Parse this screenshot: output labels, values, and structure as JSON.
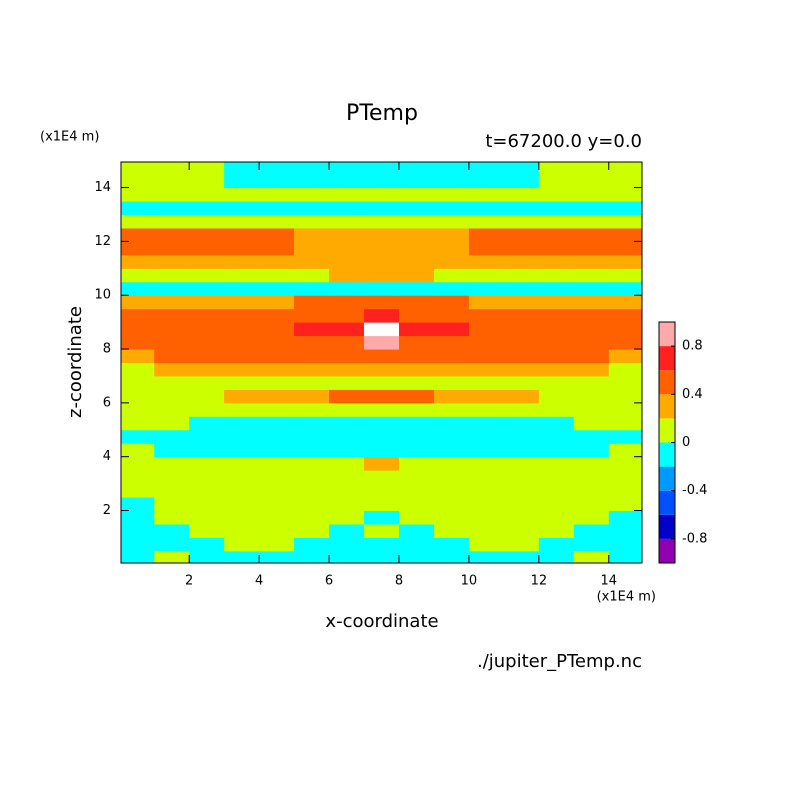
{
  "chart_data": {
    "type": "contour",
    "title": "PTemp",
    "subtitle": "t=67200.0 y=0.0",
    "xlabel": "x-coordinate",
    "ylabel": "z-coordinate",
    "x_unit": "(x1E4 m)",
    "y_unit": "(x1E4 m)",
    "source": "./jupiter_PTemp.nc",
    "xlim": [
      0.05,
      14.95
    ],
    "ylim": [
      0.05,
      14.95
    ],
    "xticks": [
      2,
      4,
      6,
      8,
      10,
      12,
      14
    ],
    "yticks": [
      2,
      4,
      6,
      8,
      10,
      12,
      14
    ],
    "x": [
      0.5,
      1.5,
      2.5,
      3.5,
      4.5,
      5.5,
      6.5,
      7.5,
      8.5,
      9.5,
      10.5,
      11.5,
      12.5,
      13.5,
      14.5
    ],
    "y": [
      0.25,
      0.75,
      1.25,
      1.75,
      2.25,
      2.75,
      3.25,
      3.75,
      4.25,
      4.75,
      5.25,
      5.75,
      6.25,
      6.75,
      7.25,
      7.75,
      8.25,
      8.75,
      9.25,
      9.75,
      10.25,
      10.75,
      11.25,
      11.75,
      12.25,
      12.75,
      13.25,
      13.75,
      14.25,
      14.75
    ],
    "z": [
      [
        -0.1,
        0.05,
        -0.1,
        -0.1,
        -0.1,
        -0.1,
        -0.1,
        -0.1,
        -0.1,
        -0.1,
        -0.1,
        -0.1,
        -0.1,
        0.05,
        -0.1
      ],
      [
        -0.1,
        -0.1,
        -0.05,
        0.1,
        0.1,
        -0.05,
        -0.1,
        -0.1,
        -0.1,
        -0.05,
        0.1,
        0.1,
        -0.05,
        -0.1,
        -0.1
      ],
      [
        -0.1,
        -0.1,
        0.1,
        0.1,
        0.1,
        0.1,
        -0.05,
        0.1,
        -0.05,
        0.1,
        0.1,
        0.1,
        0.1,
        -0.1,
        -0.1
      ],
      [
        -0.1,
        0.1,
        0.1,
        0.1,
        0.1,
        0.1,
        0.1,
        -0.05,
        0.1,
        0.1,
        0.1,
        0.1,
        0.1,
        0.1,
        -0.1
      ],
      [
        -0.05,
        0.1,
        0.1,
        0.15,
        0.1,
        0.1,
        0.1,
        0.1,
        0.1,
        0.1,
        0.1,
        0.1,
        0.1,
        0.1,
        0.1
      ],
      [
        0.12,
        0.12,
        0.12,
        0.12,
        0.12,
        0.12,
        0.12,
        0.12,
        0.12,
        0.12,
        0.12,
        0.12,
        0.12,
        0.12,
        0.12
      ],
      [
        0.12,
        0.12,
        0.12,
        0.12,
        0.12,
        0.12,
        0.12,
        0.15,
        0.12,
        0.12,
        0.12,
        0.12,
        0.12,
        0.12,
        0.12
      ],
      [
        0.12,
        0.12,
        0.12,
        0.12,
        0.12,
        0.12,
        0.12,
        0.22,
        0.12,
        0.12,
        0.12,
        0.12,
        0.12,
        0.12,
        0.12
      ],
      [
        0.05,
        -0.05,
        -0.1,
        -0.1,
        -0.1,
        -0.1,
        -0.1,
        -0.1,
        -0.1,
        -0.1,
        -0.1,
        -0.1,
        -0.1,
        -0.05,
        0.05
      ],
      [
        -0.1,
        -0.1,
        -0.1,
        -0.1,
        -0.1,
        -0.1,
        -0.1,
        -0.1,
        -0.1,
        -0.1,
        -0.1,
        -0.1,
        -0.1,
        -0.1,
        -0.1
      ],
      [
        0.05,
        0.05,
        -0.05,
        -0.05,
        -0.05,
        -0.05,
        -0.05,
        -0.05,
        -0.05,
        -0.05,
        -0.05,
        -0.05,
        -0.05,
        0.05,
        0.05
      ],
      [
        0.1,
        0.1,
        0.1,
        0.1,
        0.1,
        0.1,
        0.1,
        0.1,
        0.1,
        0.1,
        0.1,
        0.1,
        0.1,
        0.1,
        0.1
      ],
      [
        0.1,
        0.1,
        0.1,
        0.25,
        0.3,
        0.35,
        0.4,
        0.42,
        0.4,
        0.35,
        0.3,
        0.25,
        0.1,
        0.1,
        0.1
      ],
      [
        0.12,
        0.12,
        0.12,
        0.12,
        0.12,
        0.12,
        0.12,
        0.12,
        0.12,
        0.12,
        0.12,
        0.12,
        0.12,
        0.12,
        0.12
      ],
      [
        0.1,
        0.3,
        0.3,
        0.3,
        0.3,
        0.3,
        0.3,
        0.3,
        0.3,
        0.3,
        0.3,
        0.3,
        0.3,
        0.3,
        0.1
      ],
      [
        0.3,
        0.5,
        0.5,
        0.5,
        0.5,
        0.5,
        0.5,
        0.5,
        0.5,
        0.5,
        0.5,
        0.5,
        0.5,
        0.5,
        0.3
      ],
      [
        0.45,
        0.5,
        0.5,
        0.5,
        0.5,
        0.5,
        0.55,
        0.9,
        0.55,
        0.5,
        0.5,
        0.5,
        0.5,
        0.5,
        0.45
      ],
      [
        0.45,
        0.5,
        0.5,
        0.5,
        0.5,
        0.65,
        0.7,
        1.1,
        0.7,
        0.65,
        0.5,
        0.5,
        0.5,
        0.5,
        0.45
      ],
      [
        0.45,
        0.5,
        0.5,
        0.5,
        0.5,
        0.5,
        0.55,
        0.7,
        0.55,
        0.5,
        0.5,
        0.5,
        0.5,
        0.5,
        0.45
      ],
      [
        0.3,
        0.3,
        0.3,
        0.3,
        0.35,
        0.4,
        0.45,
        0.45,
        0.45,
        0.4,
        0.35,
        0.3,
        0.3,
        0.3,
        0.3
      ],
      [
        -0.08,
        -0.08,
        -0.08,
        -0.08,
        -0.08,
        -0.08,
        -0.08,
        -0.08,
        -0.08,
        -0.08,
        -0.08,
        -0.08,
        -0.08,
        -0.08,
        -0.08
      ],
      [
        0.1,
        0.1,
        0.1,
        0.1,
        0.1,
        0.1,
        0.25,
        0.25,
        0.25,
        0.1,
        0.1,
        0.1,
        0.1,
        0.1,
        0.1
      ],
      [
        0.3,
        0.3,
        0.3,
        0.3,
        0.3,
        0.3,
        0.3,
        0.3,
        0.3,
        0.3,
        0.3,
        0.3,
        0.3,
        0.3,
        0.3
      ],
      [
        0.45,
        0.45,
        0.5,
        0.5,
        0.45,
        0.35,
        0.3,
        0.3,
        0.3,
        0.35,
        0.45,
        0.5,
        0.5,
        0.45,
        0.45
      ],
      [
        0.45,
        0.5,
        0.5,
        0.5,
        0.45,
        0.3,
        0.3,
        0.3,
        0.3,
        0.3,
        0.45,
        0.5,
        0.5,
        0.5,
        0.45
      ],
      [
        0.15,
        0.15,
        0.15,
        0.15,
        0.15,
        0.15,
        0.15,
        0.15,
        0.15,
        0.15,
        0.15,
        0.15,
        0.15,
        0.15,
        0.15
      ],
      [
        -0.1,
        -0.1,
        -0.1,
        -0.1,
        -0.1,
        -0.1,
        -0.1,
        -0.1,
        -0.1,
        -0.1,
        -0.1,
        -0.1,
        -0.1,
        -0.1,
        -0.1
      ],
      [
        0.1,
        0.1,
        0.1,
        0.1,
        0.1,
        0.1,
        0.1,
        0.1,
        0.1,
        0.1,
        0.1,
        0.1,
        0.1,
        0.1,
        0.1
      ],
      [
        0.1,
        0.1,
        0.1,
        -0.02,
        -0.1,
        -0.1,
        -0.1,
        -0.1,
        -0.1,
        -0.1,
        -0.1,
        -0.02,
        0.1,
        0.1,
        0.1
      ],
      [
        0.1,
        0.1,
        0.1,
        -0.05,
        -0.1,
        -0.1,
        -0.1,
        -0.1,
        -0.1,
        -0.1,
        -0.1,
        -0.05,
        0.1,
        0.1,
        0.1
      ]
    ],
    "levels": [
      -1,
      -0.8,
      -0.6,
      -0.4,
      -0.2,
      0,
      0.2,
      0.4,
      0.6,
      0.8,
      1
    ],
    "colors": [
      "#9000b0",
      "#0000c8",
      "#0050ff",
      "#0099ff",
      "#00ffff",
      "#ccff00",
      "#ffaa00",
      "#ff6000",
      "#ff2020",
      "#ffaaaa"
    ],
    "over_color": "#ffffff",
    "colorbar_ticks": [
      -0.8,
      -0.4,
      0,
      0.4,
      0.8
    ]
  }
}
